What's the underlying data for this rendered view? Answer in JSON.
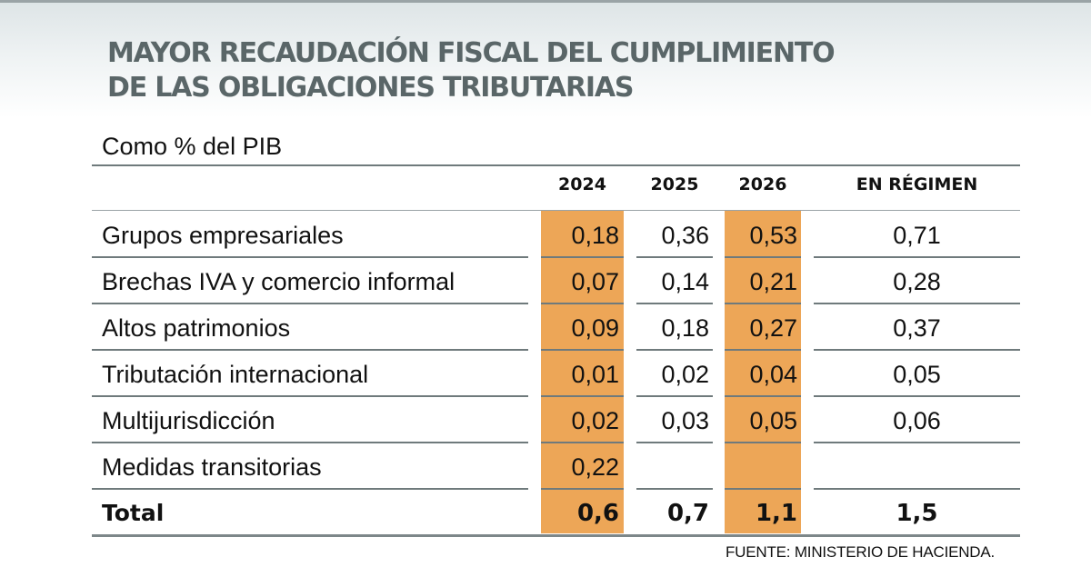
{
  "chart_data": {
    "type": "table",
    "title": "MAYOR RECAUDACIÓN FISCAL DEL CUMPLIMIENTO DE LAS OBLIGACIONES TRIBUTARIAS",
    "title_lines": [
      "MAYOR RECAUDACIÓN FISCAL DEL CUMPLIMIENTO",
      "DE LAS OBLIGACIONES TRIBUTARIAS"
    ],
    "subtitle": "Como % del PIB",
    "columns": [
      "2024",
      "2025",
      "2026",
      "EN RÉGIMEN"
    ],
    "highlighted_columns": [
      "2024",
      "2026"
    ],
    "highlight_color": "#eda657",
    "rows": [
      {
        "label": "Grupos empresariales",
        "values": [
          "0,18",
          "0,36",
          "0,53",
          "0,71"
        ]
      },
      {
        "label": "Brechas IVA y comercio informal",
        "values": [
          "0,07",
          "0,14",
          "0,21",
          "0,28"
        ]
      },
      {
        "label": "Altos patrimonios",
        "values": [
          "0,09",
          "0,18",
          "0,27",
          "0,37"
        ]
      },
      {
        "label": "Tributación internacional",
        "values": [
          "0,01",
          "0,02",
          "0,04",
          "0,05"
        ]
      },
      {
        "label": "Multijurisdicción",
        "values": [
          "0,02",
          "0,03",
          "0,05",
          "0,06"
        ]
      },
      {
        "label": "Medidas transitorias",
        "values": [
          "0,22",
          "",
          "",
          ""
        ]
      }
    ],
    "total": {
      "label": "Total",
      "values": [
        "0,6",
        "0,7",
        "1,1",
        "1,5"
      ]
    },
    "source": "FUENTE: MINISTERIO DE HACIENDA."
  }
}
